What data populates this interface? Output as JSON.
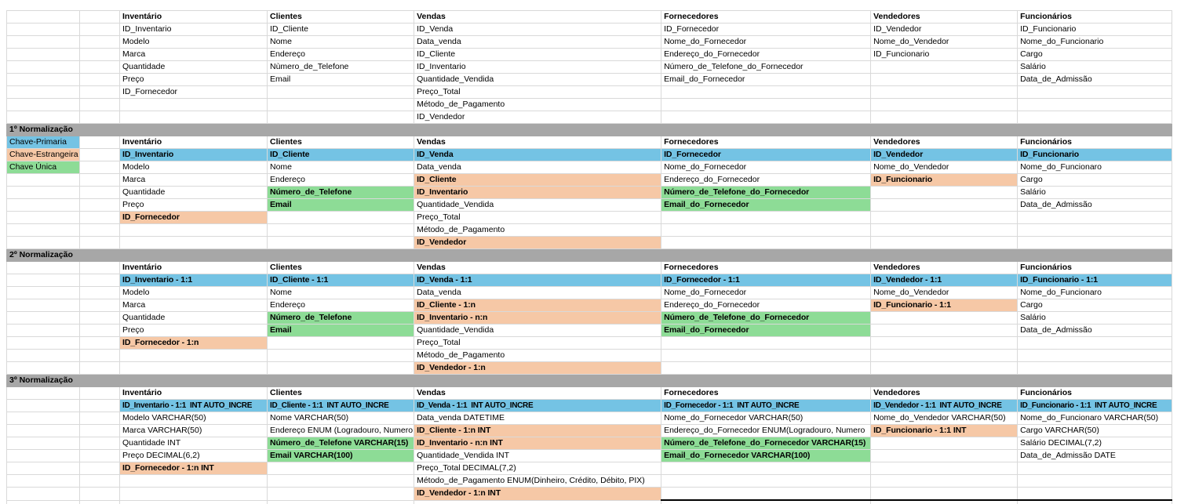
{
  "sheet": {
    "colors": {
      "pk": "#74c3e4",
      "fk": "#f6c8a6",
      "uk": "#8ddc96",
      "band": "#a7a7a7",
      "grid": "#d9d9d9",
      "key_bottom_border": "#000000"
    },
    "legend": [
      {
        "label": "Chave-Primaria",
        "type": "pk"
      },
      {
        "label": "Chave-Estrangeira",
        "type": "fk"
      },
      {
        "label": "Chave Única",
        "type": "uk"
      }
    ],
    "sections": [
      {
        "title": "",
        "tables": [
          {
            "name": "Inventário",
            "fields": [
              {
                "t": "ID_Inventario"
              },
              {
                "t": "Modelo"
              },
              {
                "t": "Marca"
              },
              {
                "t": "Quantidade"
              },
              {
                "t": "Preço"
              },
              {
                "t": "ID_Fornecedor"
              }
            ]
          },
          {
            "name": "Clientes",
            "fields": [
              {
                "t": "ID_Cliente"
              },
              {
                "t": "Nome"
              },
              {
                "t": "Endereço"
              },
              {
                "t": "Nùmero_de_Telefone"
              },
              {
                "t": "Email"
              }
            ]
          },
          {
            "name": "Vendas",
            "fields": [
              {
                "t": "ID_Venda"
              },
              {
                "t": "Data_venda"
              },
              {
                "t": "ID_Cliente"
              },
              {
                "t": "ID_Inventario"
              },
              {
                "t": "Quantidade_Vendida"
              },
              {
                "t": "Preço_Total"
              },
              {
                "t": "Método_de_Pagamento"
              },
              {
                "t": "ID_Vendedor"
              }
            ]
          },
          {
            "name": "Fornecedores",
            "fields": [
              {
                "t": "ID_Fornecedor"
              },
              {
                "t": "Nome_do_Fornecedor"
              },
              {
                "t": "Endereço_do_Fornecedor"
              },
              {
                "t": "Número_de_Telefone_do_Fornecedor"
              },
              {
                "t": "Email_do_Fornecedor"
              }
            ]
          },
          {
            "name": "Vendedores",
            "fields": [
              {
                "t": "ID_Vendedor"
              },
              {
                "t": "Nome_do_Vendedor"
              },
              {
                "t": "ID_Funcionario"
              }
            ]
          },
          {
            "name": "Funcionários",
            "fields": [
              {
                "t": "ID_Funcionario"
              },
              {
                "t": "Nome_do_Funcionario"
              },
              {
                "t": "Cargo"
              },
              {
                "t": "Salário"
              },
              {
                "t": "Data_de_Admissão"
              }
            ]
          }
        ]
      },
      {
        "title": "1º Normalização",
        "tables": [
          {
            "name": "Inventário",
            "fields": [
              {
                "t": "ID_Inventario",
                "k": "pk"
              },
              {
                "t": "Modelo"
              },
              {
                "t": "Marca"
              },
              {
                "t": "Quantidade"
              },
              {
                "t": "Preço"
              },
              {
                "t": "ID_Fornecedor",
                "k": "fk"
              }
            ]
          },
          {
            "name": "Clientes",
            "fields": [
              {
                "t": "ID_Cliente",
                "k": "pk"
              },
              {
                "t": "Nome"
              },
              {
                "t": "Endereço"
              },
              {
                "t": "Número_de_Telefone",
                "k": "uk"
              },
              {
                "t": "Email",
                "k": "uk"
              }
            ]
          },
          {
            "name": "Vendas",
            "fields": [
              {
                "t": "ID_Venda",
                "k": "pk"
              },
              {
                "t": "Data_venda"
              },
              {
                "t": "ID_Cliente",
                "k": "fk"
              },
              {
                "t": "ID_Inventario",
                "k": "fk"
              },
              {
                "t": "Quantidade_Vendida"
              },
              {
                "t": "Preço_Total"
              },
              {
                "t": "Método_de_Pagamento"
              },
              {
                "t": "ID_Vendedor",
                "k": "fk"
              }
            ]
          },
          {
            "name": "Fornecedores",
            "fields": [
              {
                "t": "ID_Fornecedor",
                "k": "pk"
              },
              {
                "t": "Nome_do_Fornecedor"
              },
              {
                "t": "Endereço_do_Fornecedor"
              },
              {
                "t": "Número_de_Telefone_do_Fornecedor",
                "k": "uk"
              },
              {
                "t": "Email_do_Fornecedor",
                "k": "uk"
              }
            ]
          },
          {
            "name": "Vendedores",
            "fields": [
              {
                "t": "ID_Vendedor",
                "k": "pk"
              },
              {
                "t": "Nome_do_Vendedor"
              },
              {
                "t": "ID_Funcionario",
                "k": "fk"
              }
            ]
          },
          {
            "name": "Funcionários",
            "fields": [
              {
                "t": "ID_Funcionario",
                "k": "pk"
              },
              {
                "t": "Nome_do_Funcionaro"
              },
              {
                "t": "Cargo"
              },
              {
                "t": "Salário"
              },
              {
                "t": "Data_de_Admissão"
              }
            ]
          }
        ]
      },
      {
        "title": "2º Normalização",
        "tables": [
          {
            "name": "Inventário",
            "fields": [
              {
                "t": "ID_Inventario - 1:1",
                "k": "pk"
              },
              {
                "t": "Modelo"
              },
              {
                "t": "Marca"
              },
              {
                "t": "Quantidade"
              },
              {
                "t": "Preço"
              },
              {
                "t": "ID_Fornecedor - 1:n",
                "k": "fk"
              }
            ]
          },
          {
            "name": "Clientes",
            "fields": [
              {
                "t": "ID_Cliente - 1:1",
                "k": "pk"
              },
              {
                "t": "Nome"
              },
              {
                "t": "Endereço"
              },
              {
                "t": "Número_de_Telefone",
                "k": "uk"
              },
              {
                "t": "Email",
                "k": "uk"
              }
            ]
          },
          {
            "name": "Vendas",
            "fields": [
              {
                "t": "ID_Venda - 1:1",
                "k": "pk"
              },
              {
                "t": "Data_venda"
              },
              {
                "t": "ID_Cliente - 1:n",
                "k": "fk"
              },
              {
                "t": "ID_Inventario - n:n",
                "k": "fk"
              },
              {
                "t": "Quantidade_Vendida"
              },
              {
                "t": "Preço_Total"
              },
              {
                "t": "Método_de_Pagamento"
              },
              {
                "t": "ID_Vendedor - 1:n",
                "k": "fk"
              }
            ]
          },
          {
            "name": "Fornecedores",
            "fields": [
              {
                "t": "ID_Fornecedor - 1:1",
                "k": "pk"
              },
              {
                "t": "Nome_do_Fornecedor"
              },
              {
                "t": "Endereço_do_Fornecedor"
              },
              {
                "t": "Número_de_Telefone_do_Fornecedor",
                "k": "uk"
              },
              {
                "t": "Email_do_Fornecedor",
                "k": "uk"
              }
            ]
          },
          {
            "name": "Vendedores",
            "fields": [
              {
                "t": "ID_Vendedor - 1:1",
                "k": "pk"
              },
              {
                "t": "Nome_do_Vendedor"
              },
              {
                "t": "ID_Funcionario - 1:1",
                "k": "fk"
              }
            ]
          },
          {
            "name": "Funcionários",
            "fields": [
              {
                "t": "ID_Funcionario - 1:1",
                "k": "pk"
              },
              {
                "t": "Nome_do_Funcionaro"
              },
              {
                "t": "Cargo"
              },
              {
                "t": "Salário"
              },
              {
                "t": "Data_de_Admissão"
              }
            ]
          }
        ]
      },
      {
        "title": "3º Normalização",
        "tables": [
          {
            "name": "Inventário",
            "fields": [
              {
                "t": "ID_Inventario - 1:1  INT AUTO_INCRE",
                "k": "pk"
              },
              {
                "t": "Modelo VARCHAR(50)"
              },
              {
                "t": "Marca VARCHAR(50)"
              },
              {
                "t": "Quantidade INT"
              },
              {
                "t": "Preço DECIMAL(6,2)"
              },
              {
                "t": "ID_Fornecedor - 1:n INT",
                "k": "fk"
              }
            ]
          },
          {
            "name": "Clientes",
            "fields": [
              {
                "t": "ID_Cliente - 1:1  INT AUTO_INCRE",
                "k": "pk"
              },
              {
                "t": "Nome VARCHAR(50)"
              },
              {
                "t": "Endereço ENUM (Logradouro, Numero"
              },
              {
                "t": "Número_de_Telefone VARCHAR(15)",
                "k": "uk"
              },
              {
                "t": "Email VARCHAR(100)",
                "k": "uk"
              }
            ]
          },
          {
            "name": "Vendas",
            "fields": [
              {
                "t": "ID_Venda - 1:1  INT AUTO_INCRE",
                "k": "pk"
              },
              {
                "t": "Data_venda DATETIME"
              },
              {
                "t": "ID_Cliente - 1:n INT",
                "k": "fk"
              },
              {
                "t": "ID_Inventario - n:n INT",
                "k": "fk"
              },
              {
                "t": "Quantidade_Vendida INT"
              },
              {
                "t": "Preço_Total DECIMAL(7,2)"
              },
              {
                "t": "Método_de_Pagamento ENUM(Dinheiro, Crédito, Débito, PIX)"
              },
              {
                "t": "ID_Vendedor - 1:n INT",
                "k": "fk"
              }
            ]
          },
          {
            "name": "Fornecedores",
            "fields": [
              {
                "t": "ID_Fornecedor - 1:1  INT AUTO_INCRE",
                "k": "pk"
              },
              {
                "t": "Nome_do_Fornecedor VARCHAR(50)"
              },
              {
                "t": "Endereço_do_Fornecedor ENUM(Logradouro, Numero"
              },
              {
                "t": "Número_de_Telefone_do_Fornecedor VARCHAR(15)",
                "k": "uk"
              },
              {
                "t": "Email_do_Fornecedor VARCHAR(100)",
                "k": "uk"
              }
            ]
          },
          {
            "name": "Vendedores",
            "fields": [
              {
                "t": "ID_Vendedor - 1:1  INT AUTO_INCRE",
                "k": "pk"
              },
              {
                "t": "Nome_do_Vendedor VARCHAR(50)"
              },
              {
                "t": "ID_Funcionario - 1:1 INT",
                "k": "fk"
              }
            ]
          },
          {
            "name": "Funcionários",
            "fields": [
              {
                "t": "ID_Funcionario - 1:1  INT AUTO_INCRE",
                "k": "pk"
              },
              {
                "t": "Nome_do_Funcionaro VARCHAR(50)"
              },
              {
                "t": "Cargo VARCHAR(50)"
              },
              {
                "t": "Salário DECIMAL(7,2)"
              },
              {
                "t": "Data_de_Admissão DATE"
              }
            ]
          }
        ]
      }
    ]
  }
}
